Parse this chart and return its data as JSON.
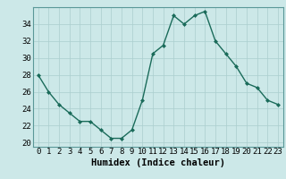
{
  "title": "",
  "xlabel": "Humidex (Indice chaleur)",
  "ylabel": "",
  "x": [
    0,
    1,
    2,
    3,
    4,
    5,
    6,
    7,
    8,
    9,
    10,
    11,
    12,
    13,
    14,
    15,
    16,
    17,
    18,
    19,
    20,
    21,
    22,
    23
  ],
  "y": [
    28,
    26,
    24.5,
    23.5,
    22.5,
    22.5,
    21.5,
    20.5,
    20.5,
    21.5,
    25,
    30.5,
    31.5,
    35,
    34,
    35,
    35.5,
    32,
    30.5,
    29,
    27,
    26.5,
    25,
    24.5
  ],
  "line_color": "#1a6b5a",
  "bg_color": "#cce8e8",
  "grid_color": "#aacece",
  "ylim": [
    19.5,
    36
  ],
  "yticks": [
    20,
    22,
    24,
    26,
    28,
    30,
    32,
    34
  ],
  "xticks": [
    0,
    1,
    2,
    3,
    4,
    5,
    6,
    7,
    8,
    9,
    10,
    11,
    12,
    13,
    14,
    15,
    16,
    17,
    18,
    19,
    20,
    21,
    22,
    23
  ],
  "marker": "D",
  "marker_size": 2.0,
  "line_width": 1.0,
  "xlabel_fontsize": 7.5,
  "tick_fontsize": 6.5
}
